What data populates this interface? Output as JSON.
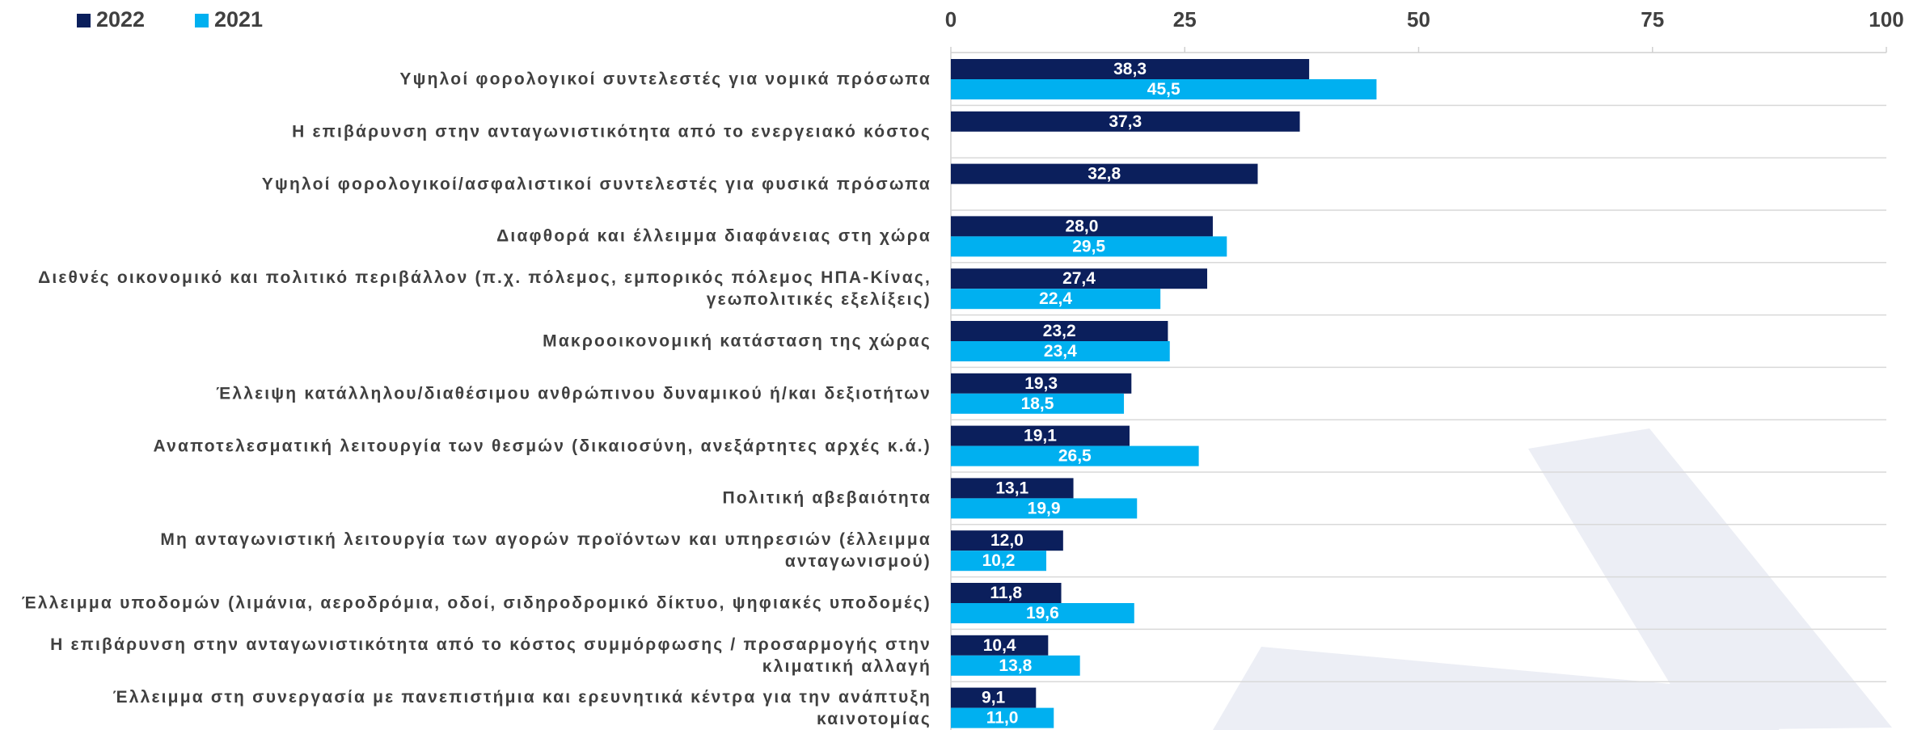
{
  "chart_data": {
    "type": "barh",
    "categories": [
      "Υψηλοί φορολογικοί συντελεστές για νομικά πρόσωπα",
      "Η επιβάρυνση στην ανταγωνιστικότητα από το ενεργειακό κόστος",
      "Υψηλοί φορολογικοί/ασφαλιστικοί συντελεστές για φυσικά πρόσωπα",
      "Διαφθορά και έλλειμμα διαφάνειας στη χώρα",
      "Διεθνές οικονομικό και πολιτικό περιβάλλον (π.χ. πόλεμος, εμπορικός πόλεμος ΗΠΑ-Κίνας, γεωπολιτικές εξελίξεις)",
      "Μακροοικονομική κατάσταση της χώρας",
      "Έλλειψη κατάλληλου/διαθέσιμου ανθρώπινου δυναμικού ή/και δεξιοτήτων",
      "Αναποτελεσματική λειτουργία των θεσμών (δικαιοσύνη, ανεξάρτητες αρχές κ.ά.)",
      "Πολιτική αβεβαιότητα",
      "Μη ανταγωνιστική λειτουργία των αγορών προϊόντων και υπηρεσιών (έλλειμμα ανταγωνισμού)",
      "Έλλειμμα υποδομών (λιμάνια, αεροδρόμια, οδοί, σιδηροδρομικό δίκτυο, ψηφιακές υποδομές)",
      "Η επιβάρυνση στην ανταγωνιστικότητα από το κόστος συμμόρφωσης / προσαρμογής στην κλιματική αλλαγή",
      "Έλλειμμα στη συνεργασία με πανεπιστήμια και ερευνητικά κέντρα για την ανάπτυξη καινοτομίας"
    ],
    "series": [
      {
        "name": "2022",
        "color": "#0b1f5c",
        "values": [
          38.3,
          37.3,
          32.8,
          28.0,
          27.4,
          23.2,
          19.3,
          19.1,
          13.1,
          12.0,
          11.8,
          10.4,
          9.1
        ],
        "value_labels": [
          "38,3",
          "37,3",
          "32,8",
          "28,0",
          "27,4",
          "23,2",
          "19,3",
          "19,1",
          "13,1",
          "12,0",
          "11,8",
          "10,4",
          "9,1"
        ]
      },
      {
        "name": "2021",
        "color": "#00b0f0",
        "values": [
          45.5,
          null,
          null,
          29.5,
          22.4,
          23.4,
          18.5,
          26.5,
          19.9,
          10.2,
          19.6,
          13.8,
          11.0
        ],
        "value_labels": [
          "45,5",
          null,
          null,
          "29,5",
          "22,4",
          "23,4",
          "18,5",
          "26,5",
          "19,9",
          "10,2",
          "19,6",
          "13,8",
          "11,0"
        ]
      }
    ],
    "xlim": [
      0,
      100
    ],
    "xticks": [
      0,
      25,
      50,
      75,
      100
    ],
    "grid": true,
    "legend": "top-left"
  }
}
